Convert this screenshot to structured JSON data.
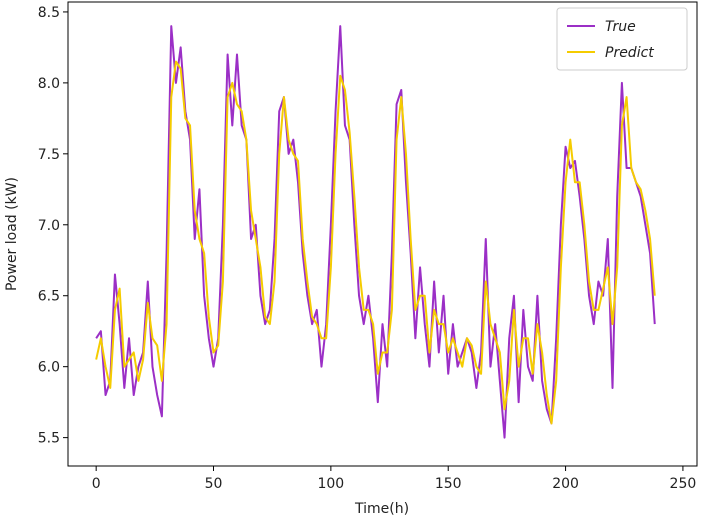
{
  "chart_data": {
    "type": "line",
    "xlabel": "Time(h)",
    "ylabel": "Power load (kW)",
    "x": [
      0,
      2,
      4,
      6,
      8,
      10,
      12,
      14,
      16,
      18,
      20,
      22,
      24,
      26,
      28,
      30,
      32,
      34,
      36,
      38,
      40,
      42,
      44,
      46,
      48,
      50,
      52,
      54,
      56,
      58,
      60,
      62,
      64,
      66,
      68,
      70,
      72,
      74,
      76,
      78,
      80,
      82,
      84,
      86,
      88,
      90,
      92,
      94,
      96,
      98,
      100,
      102,
      104,
      106,
      108,
      110,
      112,
      114,
      116,
      118,
      120,
      122,
      124,
      126,
      128,
      130,
      132,
      134,
      136,
      138,
      140,
      142,
      144,
      146,
      148,
      150,
      152,
      154,
      156,
      158,
      160,
      162,
      164,
      166,
      168,
      170,
      172,
      174,
      176,
      178,
      180,
      182,
      184,
      186,
      188,
      190,
      192,
      194,
      196,
      198,
      200,
      202,
      204,
      206,
      208,
      210,
      212,
      214,
      216,
      218,
      220,
      222,
      224,
      226,
      228,
      230,
      232,
      234,
      236,
      238
    ],
    "series": [
      {
        "name": "True",
        "color": "#9b2fc6",
        "values": [
          6.2,
          6.25,
          5.8,
          5.9,
          6.65,
          6.3,
          5.85,
          6.2,
          5.8,
          6.0,
          6.1,
          6.6,
          6.0,
          5.8,
          5.65,
          6.8,
          8.4,
          8.0,
          8.25,
          7.8,
          7.6,
          6.9,
          7.25,
          6.5,
          6.2,
          6.0,
          6.2,
          7.0,
          8.2,
          7.7,
          8.2,
          7.7,
          7.6,
          6.9,
          7.0,
          6.5,
          6.3,
          6.4,
          6.9,
          7.8,
          7.9,
          7.5,
          7.6,
          7.3,
          6.8,
          6.5,
          6.3,
          6.4,
          6.0,
          6.3,
          7.0,
          7.8,
          8.4,
          7.7,
          7.6,
          7.0,
          6.5,
          6.3,
          6.5,
          6.2,
          5.75,
          6.3,
          6.0,
          6.8,
          7.85,
          7.95,
          7.3,
          6.8,
          6.2,
          6.7,
          6.3,
          6.0,
          6.6,
          6.1,
          6.5,
          5.95,
          6.3,
          6.0,
          6.1,
          6.2,
          6.1,
          5.85,
          6.1,
          6.9,
          6.0,
          6.3,
          5.9,
          5.5,
          6.2,
          6.5,
          5.75,
          6.4,
          6.0,
          5.9,
          6.5,
          5.9,
          5.7,
          5.6,
          6.2,
          7.0,
          7.55,
          7.4,
          7.45,
          7.2,
          6.9,
          6.5,
          6.3,
          6.6,
          6.5,
          6.9,
          5.85,
          7.2,
          8.0,
          7.4,
          7.4,
          7.3,
          7.2,
          7.0,
          6.8,
          6.3
        ]
      },
      {
        "name": "Predict",
        "color": "#f5cc00",
        "values": [
          6.05,
          6.2,
          6.0,
          5.85,
          6.4,
          6.55,
          6.0,
          6.05,
          6.1,
          5.9,
          6.05,
          6.45,
          6.2,
          6.15,
          5.9,
          6.3,
          7.9,
          8.15,
          8.1,
          7.75,
          7.7,
          7.1,
          6.9,
          6.8,
          6.35,
          6.1,
          6.15,
          6.6,
          7.9,
          8.0,
          7.85,
          7.8,
          7.6,
          7.1,
          6.9,
          6.7,
          6.35,
          6.3,
          6.6,
          7.5,
          7.9,
          7.6,
          7.5,
          7.45,
          6.9,
          6.6,
          6.35,
          6.3,
          6.2,
          6.2,
          6.7,
          7.5,
          8.05,
          7.95,
          7.65,
          7.2,
          6.7,
          6.4,
          6.4,
          6.3,
          5.95,
          6.1,
          6.1,
          6.4,
          7.6,
          7.9,
          7.5,
          6.9,
          6.4,
          6.5,
          6.5,
          6.1,
          6.4,
          6.3,
          6.3,
          6.1,
          6.2,
          6.1,
          6.0,
          6.2,
          6.15,
          6.0,
          5.95,
          6.6,
          6.3,
          6.2,
          6.1,
          5.7,
          5.9,
          6.4,
          6.0,
          6.2,
          6.2,
          5.95,
          6.3,
          6.1,
          5.8,
          5.6,
          5.9,
          6.7,
          7.3,
          7.6,
          7.3,
          7.3,
          7.0,
          6.6,
          6.4,
          6.4,
          6.55,
          6.7,
          6.3,
          6.7,
          7.7,
          7.9,
          7.4,
          7.3,
          7.25,
          7.1,
          6.9,
          6.5
        ]
      }
    ],
    "xlim": [
      -12,
      256
    ],
    "xticks": [
      0,
      50,
      100,
      150,
      200,
      250
    ],
    "ylim": [
      5.3,
      8.57
    ],
    "yticks": [
      5.5,
      {
        "value": 6,
        "label": "6.0"
      },
      6.5,
      {
        "value": 7,
        "label": "7.0"
      },
      7.5,
      {
        "value": 8,
        "label": "8.0"
      },
      8.5
    ],
    "legend": "upper right"
  }
}
